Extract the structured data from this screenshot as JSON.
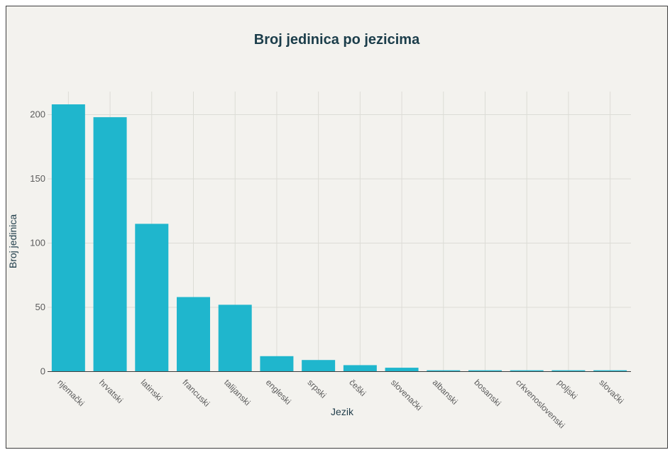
{
  "chart_data": {
    "type": "bar",
    "title": "Broj jedinica po jezicima",
    "xlabel": "Jezik",
    "ylabel": "Broj jedinica",
    "categories": [
      "njemački",
      "hrvatski",
      "latinski",
      "francuski",
      "talijanski",
      "engleski",
      "srpski",
      "češki",
      "slovenački",
      "albanski",
      "bosanski",
      "crkvenoslovenski",
      "poljski",
      "slovački"
    ],
    "values": [
      208,
      198,
      115,
      58,
      52,
      12,
      9,
      5,
      3,
      1,
      1,
      1,
      1,
      1
    ],
    "yticks": [
      0,
      50,
      100,
      150,
      200
    ],
    "ylim": [
      0,
      230
    ],
    "grid": true,
    "bar_color": "#1fb6cd",
    "background": "#f3f2ee"
  }
}
